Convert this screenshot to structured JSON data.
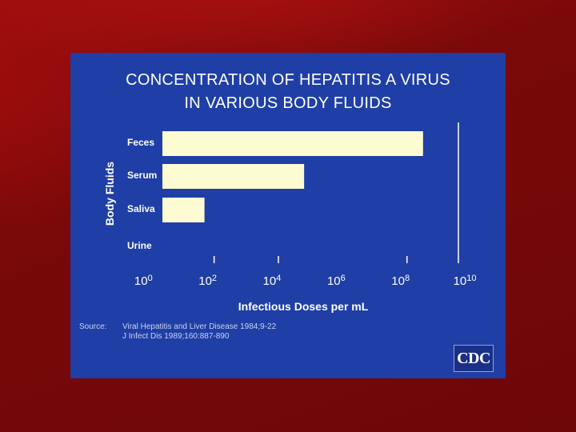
{
  "slide": {
    "title_line1": "CONCENTRATION OF HEPATITIS A VIRUS",
    "title_line2": "IN VARIOUS BODY FLUIDS",
    "source_label": "Source:",
    "source_line1": "Viral Hepatitis and Liver Disease 1984;9-22",
    "source_line2": "J Infect Dis 1989;160:887-890",
    "logo_text": "CDC"
  },
  "colors": {
    "background": "#7d0b0b",
    "panel": "#1f3fa6",
    "bar_fill": "#fdfbd2",
    "text": "#ffffff"
  },
  "chart_data": {
    "type": "bar",
    "orientation": "horizontal",
    "x_scale": "log10",
    "xlim_exponent": [
      -1.6,
      9.6
    ],
    "xlabel": "Infectious Doses per mL",
    "ylabel": "Body Fluids",
    "categories": [
      "Feces",
      "Serum",
      "Saliva",
      "Urine"
    ],
    "values_exponent": [
      8.5,
      4.8,
      1.7,
      null
    ],
    "tick_base": "10",
    "tick_exponents": [
      "0",
      "2",
      "4",
      "6",
      "8",
      "10"
    ],
    "tick_marks_exponent": [
      2,
      4,
      8
    ],
    "reference_line_exponent": 9.6,
    "grid": false
  }
}
